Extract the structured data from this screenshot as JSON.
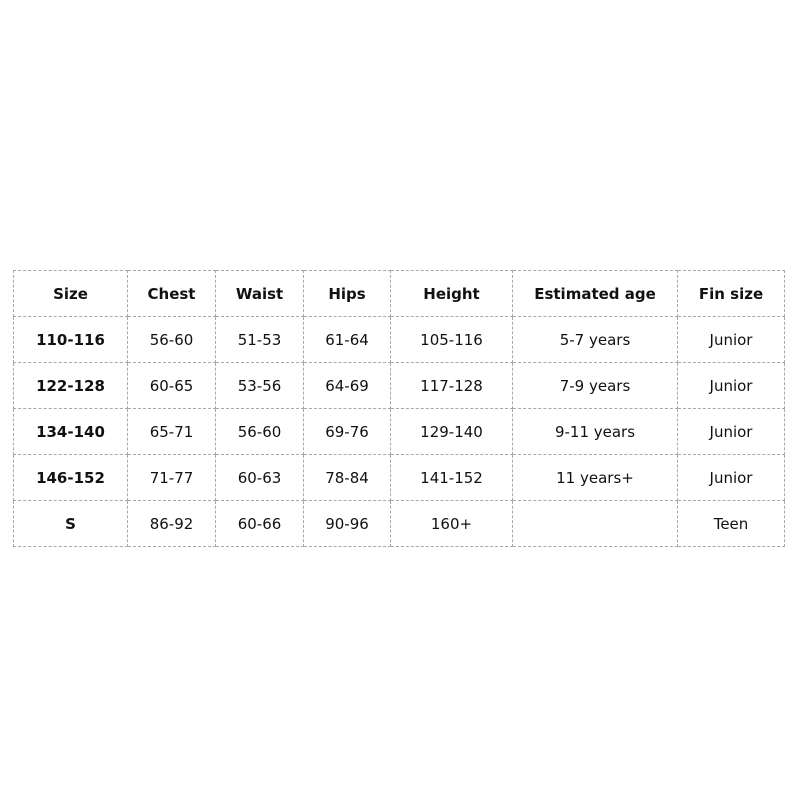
{
  "table": {
    "headers": [
      "Size",
      "Chest",
      "Waist",
      "Hips",
      "Height",
      "Estimated age",
      "Fin size"
    ],
    "rows": [
      [
        "110-116",
        "56-60",
        "51-53",
        "61-64",
        "105-116",
        "5-7 years",
        "Junior"
      ],
      [
        "122-128",
        "60-65",
        "53-56",
        "64-69",
        "117-128",
        "7-9 years",
        "Junior"
      ],
      [
        "134-140",
        "65-71",
        "56-60",
        "69-76",
        "129-140",
        "9-11 years",
        "Junior"
      ],
      [
        "146-152",
        "71-77",
        "60-63",
        "78-84",
        "141-152",
        "11 years+",
        "Junior"
      ],
      [
        "S",
        "86-92",
        "60-66",
        "90-96",
        "160+",
        "",
        "Teen"
      ]
    ]
  }
}
